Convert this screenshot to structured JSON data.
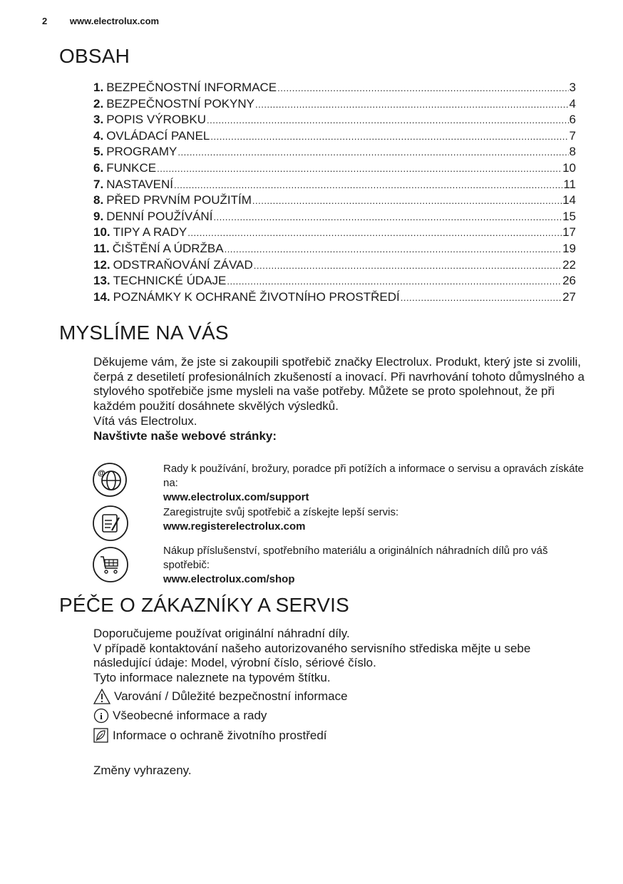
{
  "header": {
    "page_number": "2",
    "url": "www.electrolux.com"
  },
  "toc": {
    "title": "OBSAH",
    "items": [
      {
        "num": "1.",
        "label": "BEZPEČNOSTNÍ INFORMACE",
        "page": "3"
      },
      {
        "num": "2.",
        "label": "BEZPEČNOSTNÍ POKYNY",
        "page": "4"
      },
      {
        "num": "3.",
        "label": "POPIS VÝROBKU",
        "page": "6"
      },
      {
        "num": "4.",
        "label": "OVLÁDACÍ PANEL",
        "page": "7"
      },
      {
        "num": "5.",
        "label": "PROGRAMY",
        "page": "8"
      },
      {
        "num": "6.",
        "label": "FUNKCE",
        "page": "10"
      },
      {
        "num": "7.",
        "label": "NASTAVENÍ",
        "page": "11"
      },
      {
        "num": "8.",
        "label": "PŘED PRVNÍM POUŽITÍM",
        "page": "14"
      },
      {
        "num": "9.",
        "label": "DENNÍ POUŽÍVÁNÍ",
        "page": "15"
      },
      {
        "num": "10.",
        "label": "TIPY A RADY",
        "page": "17"
      },
      {
        "num": "11.",
        "label": "ČIŠTĚNÍ A ÚDRŽBA",
        "page": "19"
      },
      {
        "num": "12.",
        "label": "ODSTRAŇOVÁNÍ ZÁVAD",
        "page": "22"
      },
      {
        "num": "13.",
        "label": "TECHNICKÉ ÚDAJE",
        "page": "26"
      },
      {
        "num": "14.",
        "label": "POZNÁMKY K OCHRANĚ ŽIVOTNÍHO PROSTŘEDÍ",
        "page": "27"
      }
    ]
  },
  "thinking": {
    "title": "MYSLÍME NA VÁS",
    "intro": "Děkujeme vám, že jste si zakoupili spotřebič značky Electrolux. Produkt, který jste si zvolili, čerpá z desetiletí profesionálních zkušeností a inovací. Při navrhování tohoto důmyslného a stylového spotřebiče jsme mysleli na vaše potřeby. Můžete se proto spolehnout, že při každém použití dosáhnete skvělých výsledků.",
    "welcome": "Vítá vás Electrolux.",
    "visit": "Navštivte naše webové stránky:",
    "links": [
      {
        "icon": "globe-icon",
        "text": "Rady k používání, brožury, poradce při potížích a informace o servisu a opravách získáte na:",
        "url": "www.electrolux.com/support"
      },
      {
        "icon": "register-icon",
        "text": "Zaregistrujte svůj spotřebič a získejte lepší servis:",
        "url": "www.registerelectrolux.com"
      },
      {
        "icon": "cart-icon",
        "text": "Nákup příslušenství, spotřebního materiálu a originálních náhradních dílů pro váš spotřebič:",
        "url": "www.electrolux.com/shop"
      }
    ]
  },
  "care": {
    "title": "PÉČE O ZÁKAZNÍKY A SERVIS",
    "line1": "Doporučujeme používat originální náhradní díly.",
    "line2": "V případě kontaktování našeho autorizovaného servisního střediska mějte u sebe následující údaje: Model, výrobní číslo, sériové číslo.",
    "line3": "Tyto informace naleznete na typovém štítku.",
    "legend": [
      {
        "icon": "warning-icon",
        "text": "Varování / Důležité bezpečnostní informace"
      },
      {
        "icon": "info-icon",
        "text": "Všeobecné informace a rady"
      },
      {
        "icon": "leaf-icon",
        "text": "Informace o ochraně životního prostředí"
      }
    ],
    "footer": "Změny vyhrazeny."
  }
}
